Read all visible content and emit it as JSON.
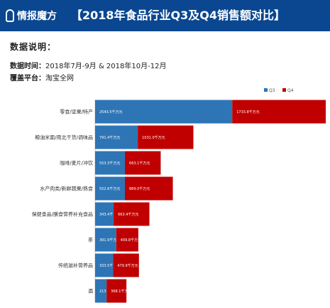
{
  "header": {
    "logo_text": "情报魔方",
    "title": "【2018年食品行业Q3及Q4销售额对比】"
  },
  "info": {
    "heading": "数据说明：",
    "time_label": "数据时间：",
    "time_value": "2018年7月-9月 & 2018年10月-12月",
    "platform_label": "覆盖平台：",
    "platform_value": "淘宝全网"
  },
  "chart_data": {
    "type": "bar",
    "orientation": "horizontal",
    "stacked": true,
    "categories": [
      "零食/坚果/特产",
      "粮油米面/南北干货/调味品",
      "咖啡/麦片/冲饮",
      "水产肉类/新鲜蔬果/熟食",
      "保健食品/膳食营养补充食品",
      "茶",
      "传统滋补营养品",
      "酒"
    ],
    "series": [
      {
        "name": "Q3",
        "color": "#2e75b6",
        "values": [
          2543.5,
          791.4,
          553.3,
          552.6,
          343.4,
          391.9,
          333.5,
          213.0
        ],
        "labels": [
          "2543.5千万元",
          "791.4千万元",
          "553.3千万元",
          "552.6千万元",
          "343.4千万元",
          "391.9千万元",
          "333.5千万元",
          "213.0千万元"
        ]
      },
      {
        "name": "Q4",
        "color": "#c00000",
        "values": [
          1733.8,
          1031.0,
          663.1,
          889.0,
          663.4,
          409.8,
          479.9,
          368.1
        ],
        "labels": [
          "1733.8千万元",
          "1031.0千万元",
          "663.1千万元",
          "889.0千万元",
          "663.4千万元",
          "409.8千万元",
          "479.9千万元",
          "368.1千万元"
        ]
      }
    ],
    "legend_position": "top-right",
    "grid": false,
    "xlim": [
      0,
      4277.3
    ]
  }
}
